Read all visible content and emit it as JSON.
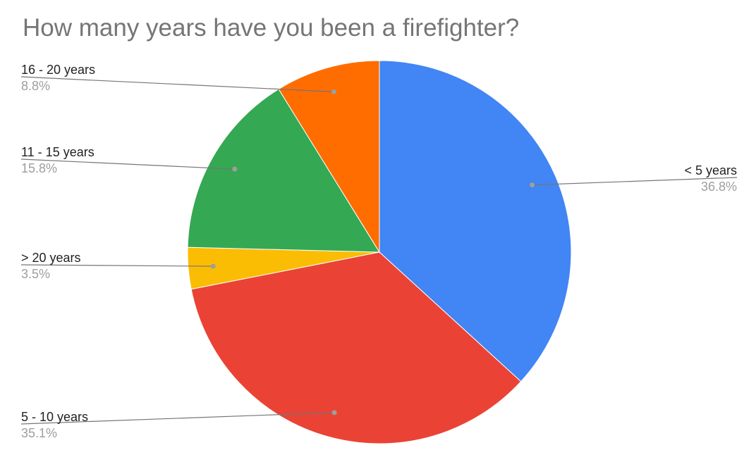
{
  "chart_data": {
    "type": "pie",
    "title": "How many years have you been a firefighter?",
    "categories": [
      "< 5 years",
      "5 - 10 years",
      "> 20 years",
      "11 - 15 years",
      "16 - 20 years"
    ],
    "values": [
      36.8,
      35.1,
      3.5,
      15.8,
      8.8
    ],
    "labels": [
      "36.8%",
      "35.1%",
      "3.5%",
      "15.8%",
      "8.8%"
    ],
    "colors": [
      "#4285f4",
      "#ea4335",
      "#fbbc04",
      "#34a853",
      "#ff6d01"
    ],
    "legend": "none",
    "start_angle": "top",
    "direction": "clockwise"
  }
}
